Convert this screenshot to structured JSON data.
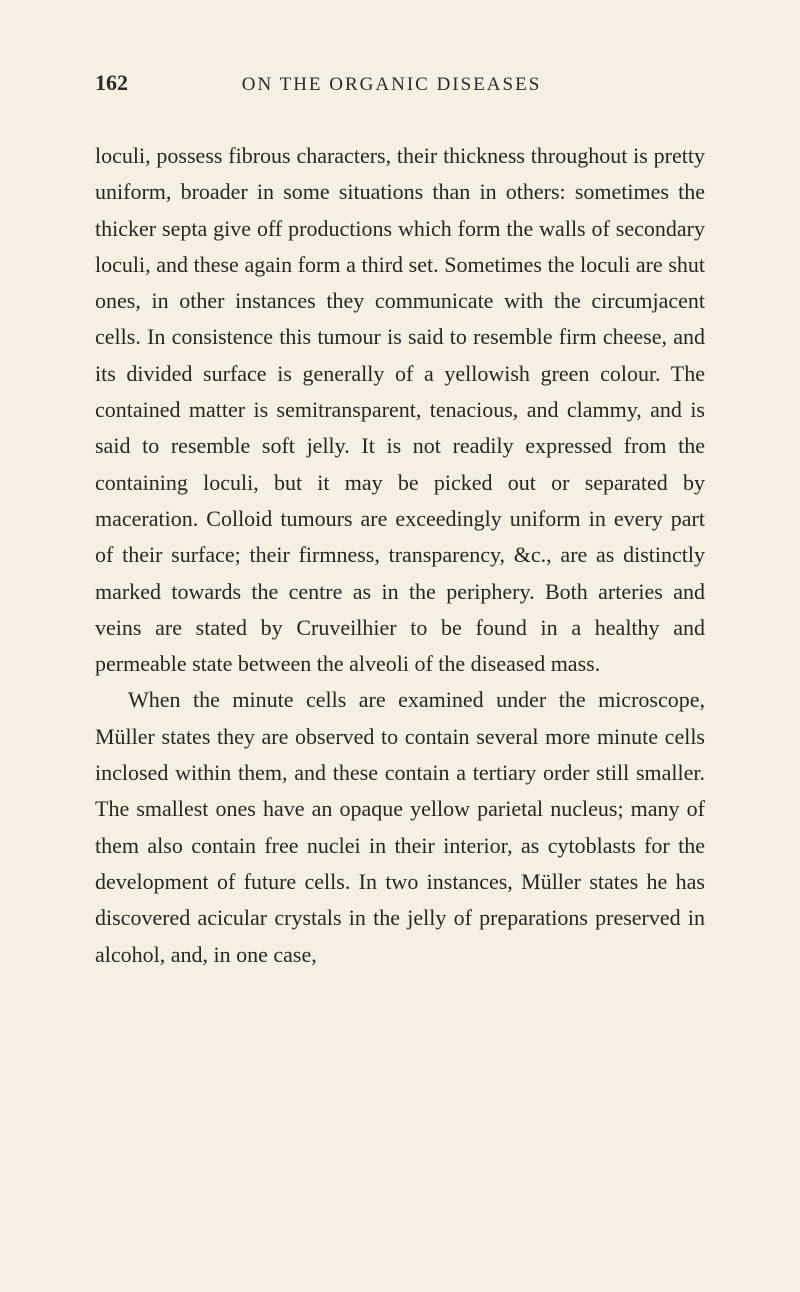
{
  "page": {
    "number": "162",
    "runningTitle": "ON THE ORGANIC DISEASES"
  },
  "paragraphs": [
    {
      "indent": false,
      "text": "loculi, possess fibrous characters, their thickness throughout is pretty uniform, broader in some situations than in others: sometimes the thicker septa give off productions which form the walls of secondary loculi, and these again form a third set. Sometimes the loculi are shut ones, in other instances they communicate with the circumjacent cells. In consistence this tumour is said to resemble firm cheese, and its divided surface is generally of a yellowish green colour. The contained matter is semitransparent, tenacious, and clammy, and is said to resemble soft jelly. It is not readily expressed from the containing loculi, but it may be picked out or separated by maceration. Colloid tumours are exceedingly uniform in every part of their surface; their firmness, transparency, &c., are as distinctly marked towards the centre as in the periphery. Both arteries and veins are stated by Cruveilhier to be found in a healthy and permeable state between the alveoli of the diseased mass."
    },
    {
      "indent": true,
      "text": "When the minute cells are examined under the microscope, Müller states they are observed to contain several more minute cells inclosed within them, and these contain a tertiary order still smaller. The smallest ones have an opaque yellow parietal nucleus; many of them also contain free nuclei in their interior, as cytoblasts for the development of future cells. In two instances, Müller states he has discovered acicular crystals in the jelly of preparations preserved in alcohol, and, in one case,"
    }
  ],
  "styling": {
    "backgroundColor": "#f5f0e1",
    "textColor": "#2a2522",
    "fontSize": 22,
    "lineHeight": 1.65,
    "pageWidth": 800,
    "pageHeight": 1292
  }
}
